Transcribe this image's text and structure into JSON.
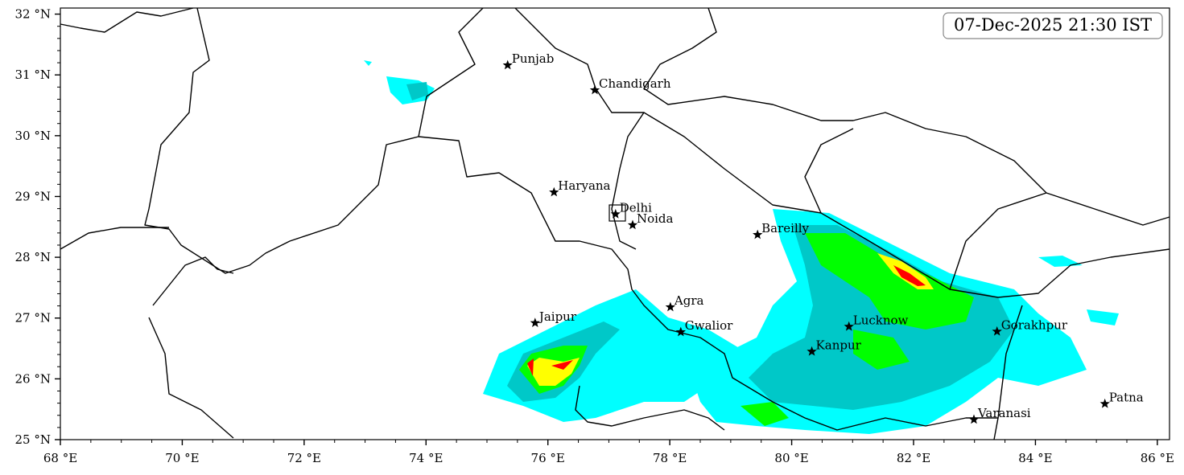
{
  "map": {
    "timestamp": "07-Dec-2025 21:30 IST",
    "xlim": [
      68,
      86.2
    ],
    "ylim": [
      25,
      32.1
    ],
    "xticks": [
      {
        "value": 68,
        "label": "68 °E"
      },
      {
        "value": 70,
        "label": "70 °E"
      },
      {
        "value": 72,
        "label": "72 °E"
      },
      {
        "value": 74,
        "label": "74 °E"
      },
      {
        "value": 76,
        "label": "76 °E"
      },
      {
        "value": 78,
        "label": "78 °E"
      },
      {
        "value": 80,
        "label": "80 °E"
      },
      {
        "value": 82,
        "label": "82 °E"
      },
      {
        "value": 84,
        "label": "84 °E"
      },
      {
        "value": 86,
        "label": "86 °E"
      }
    ],
    "yticks": [
      {
        "value": 25,
        "label": "25 °N"
      },
      {
        "value": 26,
        "label": "26 °N"
      },
      {
        "value": 27,
        "label": "27 °N"
      },
      {
        "value": 28,
        "label": "28 °N"
      },
      {
        "value": 29,
        "label": "29 °N"
      },
      {
        "value": 30,
        "label": "30 °N"
      },
      {
        "value": 31,
        "label": "31 °N"
      },
      {
        "value": 32,
        "label": "32 °N"
      }
    ],
    "cities": [
      {
        "name": "Punjab",
        "lon": 75.34,
        "lat": 31.16
      },
      {
        "name": "Chandigarh",
        "lon": 76.77,
        "lat": 30.75
      },
      {
        "name": "Haryana",
        "lon": 76.1,
        "lat": 29.07
      },
      {
        "name": "Delhi",
        "lon": 77.11,
        "lat": 28.71
      },
      {
        "name": "Noida",
        "lon": 77.39,
        "lat": 28.53
      },
      {
        "name": "Bareilly",
        "lon": 79.44,
        "lat": 28.37
      },
      {
        "name": "Agra",
        "lon": 78.01,
        "lat": 27.18
      },
      {
        "name": "Jaipur",
        "lon": 75.79,
        "lat": 26.92
      },
      {
        "name": "Gwalior",
        "lon": 78.18,
        "lat": 26.77
      },
      {
        "name": "Lucknow",
        "lon": 80.94,
        "lat": 26.86
      },
      {
        "name": "Kanpur",
        "lon": 80.33,
        "lat": 26.45
      },
      {
        "name": "Gorakhpur",
        "lon": 83.37,
        "lat": 26.78
      },
      {
        "name": "Varanasi",
        "lon": 82.99,
        "lat": 25.33
      },
      {
        "name": "Patna",
        "lon": 85.14,
        "lat": 25.59
      }
    ]
  }
}
